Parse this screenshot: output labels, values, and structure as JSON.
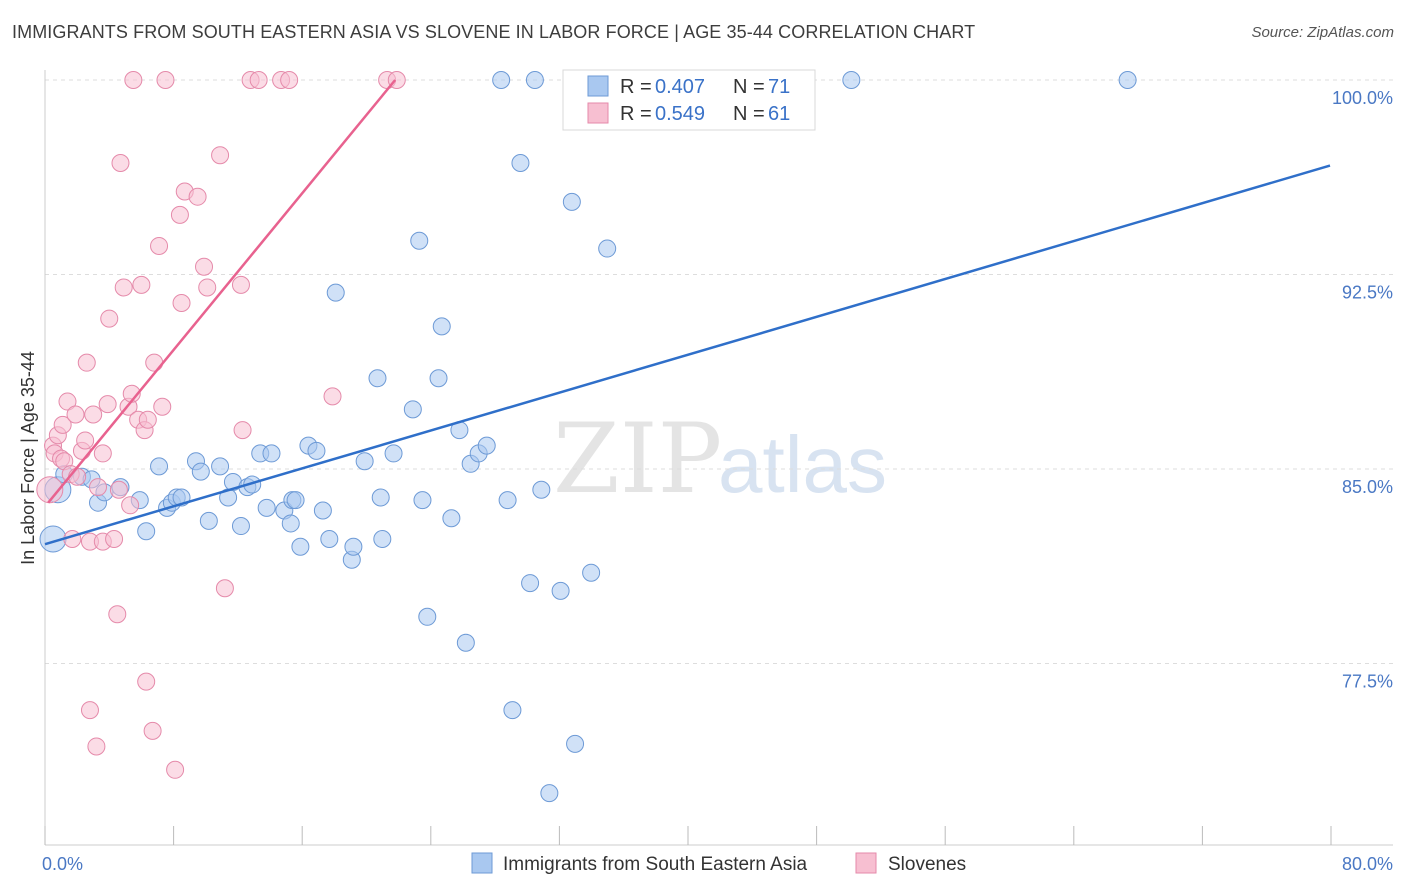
{
  "title": "IMMIGRANTS FROM SOUTH EASTERN ASIA VS SLOVENE IN LABOR FORCE | AGE 35-44 CORRELATION CHART",
  "source": "Source: ZipAtlas.com",
  "watermark": {
    "zip": "ZIP",
    "atlas": "atlas"
  },
  "chart_data": {
    "type": "scatter",
    "title": "IMMIGRANTS FROM SOUTH EASTERN ASIA VS SLOVENE IN LABOR FORCE | AGE 35-44 CORRELATION CHART",
    "xlabel": "",
    "ylabel": "In Labor Force | Age 35-44",
    "xlim": [
      0,
      80
    ],
    "ylim": [
      70.5,
      101
    ],
    "x_tick_labels": [
      "0.0%",
      "80.0%"
    ],
    "y_ticks": [
      77.5,
      85.0,
      92.5,
      100.0
    ],
    "y_tick_labels": [
      "77.5%",
      "85.0%",
      "92.5%",
      "100.0%"
    ],
    "grid": "horizontal dashed",
    "legend_box": [
      {
        "r_label": "R = ",
        "r_value": "0.407",
        "n_label": "N = ",
        "n_value": "71"
      },
      {
        "r_label": "R = ",
        "r_value": "0.549",
        "n_label": "N = ",
        "n_value": "61"
      }
    ],
    "series": [
      {
        "name": "Immigrants from South Eastern Asia",
        "color": "#a9c8f0",
        "edge": "#6d9ad6",
        "line_color": "#2f6fc9",
        "trend": {
          "x": [
            0,
            80
          ],
          "y": [
            82.1,
            96.7
          ]
        },
        "points": [
          {
            "x": 0.5,
            "y": 82.3,
            "big": true
          },
          {
            "x": 0.8,
            "y": 84.2,
            "big": true
          },
          {
            "x": 1.2,
            "y": 84.8
          },
          {
            "x": 2.3,
            "y": 84.7
          },
          {
            "x": 2.9,
            "y": 84.6
          },
          {
            "x": 3.3,
            "y": 83.7
          },
          {
            "x": 3.7,
            "y": 84.1
          },
          {
            "x": 4.7,
            "y": 84.3
          },
          {
            "x": 5.9,
            "y": 83.8
          },
          {
            "x": 6.3,
            "y": 82.6
          },
          {
            "x": 7.1,
            "y": 85.1
          },
          {
            "x": 7.6,
            "y": 83.5
          },
          {
            "x": 7.9,
            "y": 83.7
          },
          {
            "x": 8.2,
            "y": 83.9
          },
          {
            "x": 8.5,
            "y": 83.9
          },
          {
            "x": 9.4,
            "y": 85.3
          },
          {
            "x": 9.7,
            "y": 84.9
          },
          {
            "x": 10.2,
            "y": 83.0
          },
          {
            "x": 10.9,
            "y": 85.1
          },
          {
            "x": 11.4,
            "y": 83.9
          },
          {
            "x": 11.7,
            "y": 84.5
          },
          {
            "x": 12.2,
            "y": 82.8
          },
          {
            "x": 12.6,
            "y": 84.3
          },
          {
            "x": 12.9,
            "y": 84.4
          },
          {
            "x": 13.8,
            "y": 83.5
          },
          {
            "x": 13.4,
            "y": 85.6
          },
          {
            "x": 14.1,
            "y": 85.6
          },
          {
            "x": 14.9,
            "y": 83.4
          },
          {
            "x": 15.3,
            "y": 82.9
          },
          {
            "x": 15.4,
            "y": 83.8
          },
          {
            "x": 15.6,
            "y": 83.8
          },
          {
            "x": 15.9,
            "y": 82.0
          },
          {
            "x": 16.4,
            "y": 85.9
          },
          {
            "x": 16.9,
            "y": 85.7
          },
          {
            "x": 17.3,
            "y": 83.4
          },
          {
            "x": 17.7,
            "y": 82.3
          },
          {
            "x": 18.1,
            "y": 91.8
          },
          {
            "x": 19.1,
            "y": 81.5
          },
          {
            "x": 19.2,
            "y": 82.0
          },
          {
            "x": 19.9,
            "y": 85.3
          },
          {
            "x": 20.7,
            "y": 88.5
          },
          {
            "x": 20.9,
            "y": 83.9
          },
          {
            "x": 21.0,
            "y": 82.3
          },
          {
            "x": 21.7,
            "y": 85.6
          },
          {
            "x": 22.9,
            "y": 87.3
          },
          {
            "x": 23.5,
            "y": 83.8
          },
          {
            "x": 23.3,
            "y": 93.8
          },
          {
            "x": 23.8,
            "y": 79.3
          },
          {
            "x": 24.7,
            "y": 90.5
          },
          {
            "x": 24.5,
            "y": 88.5
          },
          {
            "x": 25.3,
            "y": 83.1
          },
          {
            "x": 26.2,
            "y": 78.3
          },
          {
            "x": 25.8,
            "y": 86.5
          },
          {
            "x": 26.5,
            "y": 85.2
          },
          {
            "x": 27.0,
            "y": 85.6
          },
          {
            "x": 27.5,
            "y": 85.9
          },
          {
            "x": 28.8,
            "y": 83.8
          },
          {
            "x": 29.1,
            "y": 75.7
          },
          {
            "x": 29.6,
            "y": 96.8
          },
          {
            "x": 30.2,
            "y": 80.6
          },
          {
            "x": 30.9,
            "y": 84.2
          },
          {
            "x": 31.4,
            "y": 72.5
          },
          {
            "x": 32.1,
            "y": 80.3
          },
          {
            "x": 32.8,
            "y": 95.3
          },
          {
            "x": 33.0,
            "y": 74.4
          },
          {
            "x": 34.0,
            "y": 81.0
          },
          {
            "x": 35.0,
            "y": 93.5
          },
          {
            "x": 28.4,
            "y": 100.0
          },
          {
            "x": 30.5,
            "y": 100.0
          },
          {
            "x": 50.2,
            "y": 100.0
          },
          {
            "x": 67.4,
            "y": 100.0
          }
        ]
      },
      {
        "name": "Slovenes",
        "color": "#f7bfd1",
        "edge": "#e58aaa",
        "line_color": "#e8628f",
        "trend": {
          "x": [
            0.2,
            21.8
          ],
          "y": [
            83.7,
            100.0
          ]
        },
        "points": [
          {
            "x": 0.3,
            "y": 84.2,
            "big": true
          },
          {
            "x": 0.5,
            "y": 85.9
          },
          {
            "x": 0.6,
            "y": 85.6
          },
          {
            "x": 0.8,
            "y": 86.3
          },
          {
            "x": 1.0,
            "y": 85.4
          },
          {
            "x": 1.1,
            "y": 86.7
          },
          {
            "x": 1.2,
            "y": 85.3
          },
          {
            "x": 1.4,
            "y": 87.6
          },
          {
            "x": 1.6,
            "y": 84.8
          },
          {
            "x": 1.9,
            "y": 87.1
          },
          {
            "x": 2.0,
            "y": 84.7
          },
          {
            "x": 2.3,
            "y": 85.7
          },
          {
            "x": 2.6,
            "y": 89.1
          },
          {
            "x": 2.8,
            "y": 82.2
          },
          {
            "x": 3.0,
            "y": 87.1
          },
          {
            "x": 3.3,
            "y": 84.3
          },
          {
            "x": 3.6,
            "y": 85.6
          },
          {
            "x": 3.6,
            "y": 82.2
          },
          {
            "x": 3.9,
            "y": 87.5
          },
          {
            "x": 4.0,
            "y": 90.8
          },
          {
            "x": 4.3,
            "y": 82.3
          },
          {
            "x": 4.5,
            "y": 79.4
          },
          {
            "x": 4.6,
            "y": 84.2
          },
          {
            "x": 4.7,
            "y": 96.8
          },
          {
            "x": 4.9,
            "y": 92.0
          },
          {
            "x": 5.2,
            "y": 87.4
          },
          {
            "x": 5.3,
            "y": 83.6
          },
          {
            "x": 5.4,
            "y": 87.9
          },
          {
            "x": 5.8,
            "y": 86.9
          },
          {
            "x": 6.0,
            "y": 92.1
          },
          {
            "x": 6.2,
            "y": 86.5
          },
          {
            "x": 6.3,
            "y": 76.8
          },
          {
            "x": 6.4,
            "y": 86.9
          },
          {
            "x": 6.7,
            "y": 74.9
          },
          {
            "x": 6.8,
            "y": 89.1
          },
          {
            "x": 7.1,
            "y": 93.6
          },
          {
            "x": 7.3,
            "y": 87.4
          },
          {
            "x": 8.1,
            "y": 73.4
          },
          {
            "x": 8.4,
            "y": 94.8
          },
          {
            "x": 8.5,
            "y": 91.4
          },
          {
            "x": 8.7,
            "y": 95.7
          },
          {
            "x": 9.5,
            "y": 95.5
          },
          {
            "x": 9.9,
            "y": 92.8
          },
          {
            "x": 10.1,
            "y": 92.0
          },
          {
            "x": 10.9,
            "y": 97.1
          },
          {
            "x": 11.2,
            "y": 80.4
          },
          {
            "x": 12.3,
            "y": 86.5
          },
          {
            "x": 12.2,
            "y": 92.1
          },
          {
            "x": 17.9,
            "y": 87.8
          },
          {
            "x": 3.2,
            "y": 74.3
          },
          {
            "x": 2.8,
            "y": 75.7
          },
          {
            "x": 5.5,
            "y": 100.0
          },
          {
            "x": 7.5,
            "y": 100.0
          },
          {
            "x": 12.8,
            "y": 100.0
          },
          {
            "x": 13.3,
            "y": 100.0
          },
          {
            "x": 14.7,
            "y": 100.0
          },
          {
            "x": 15.2,
            "y": 100.0
          },
          {
            "x": 21.3,
            "y": 100.0
          },
          {
            "x": 21.9,
            "y": 100.0
          },
          {
            "x": 2.5,
            "y": 86.1
          },
          {
            "x": 1.7,
            "y": 82.3
          }
        ]
      }
    ]
  }
}
